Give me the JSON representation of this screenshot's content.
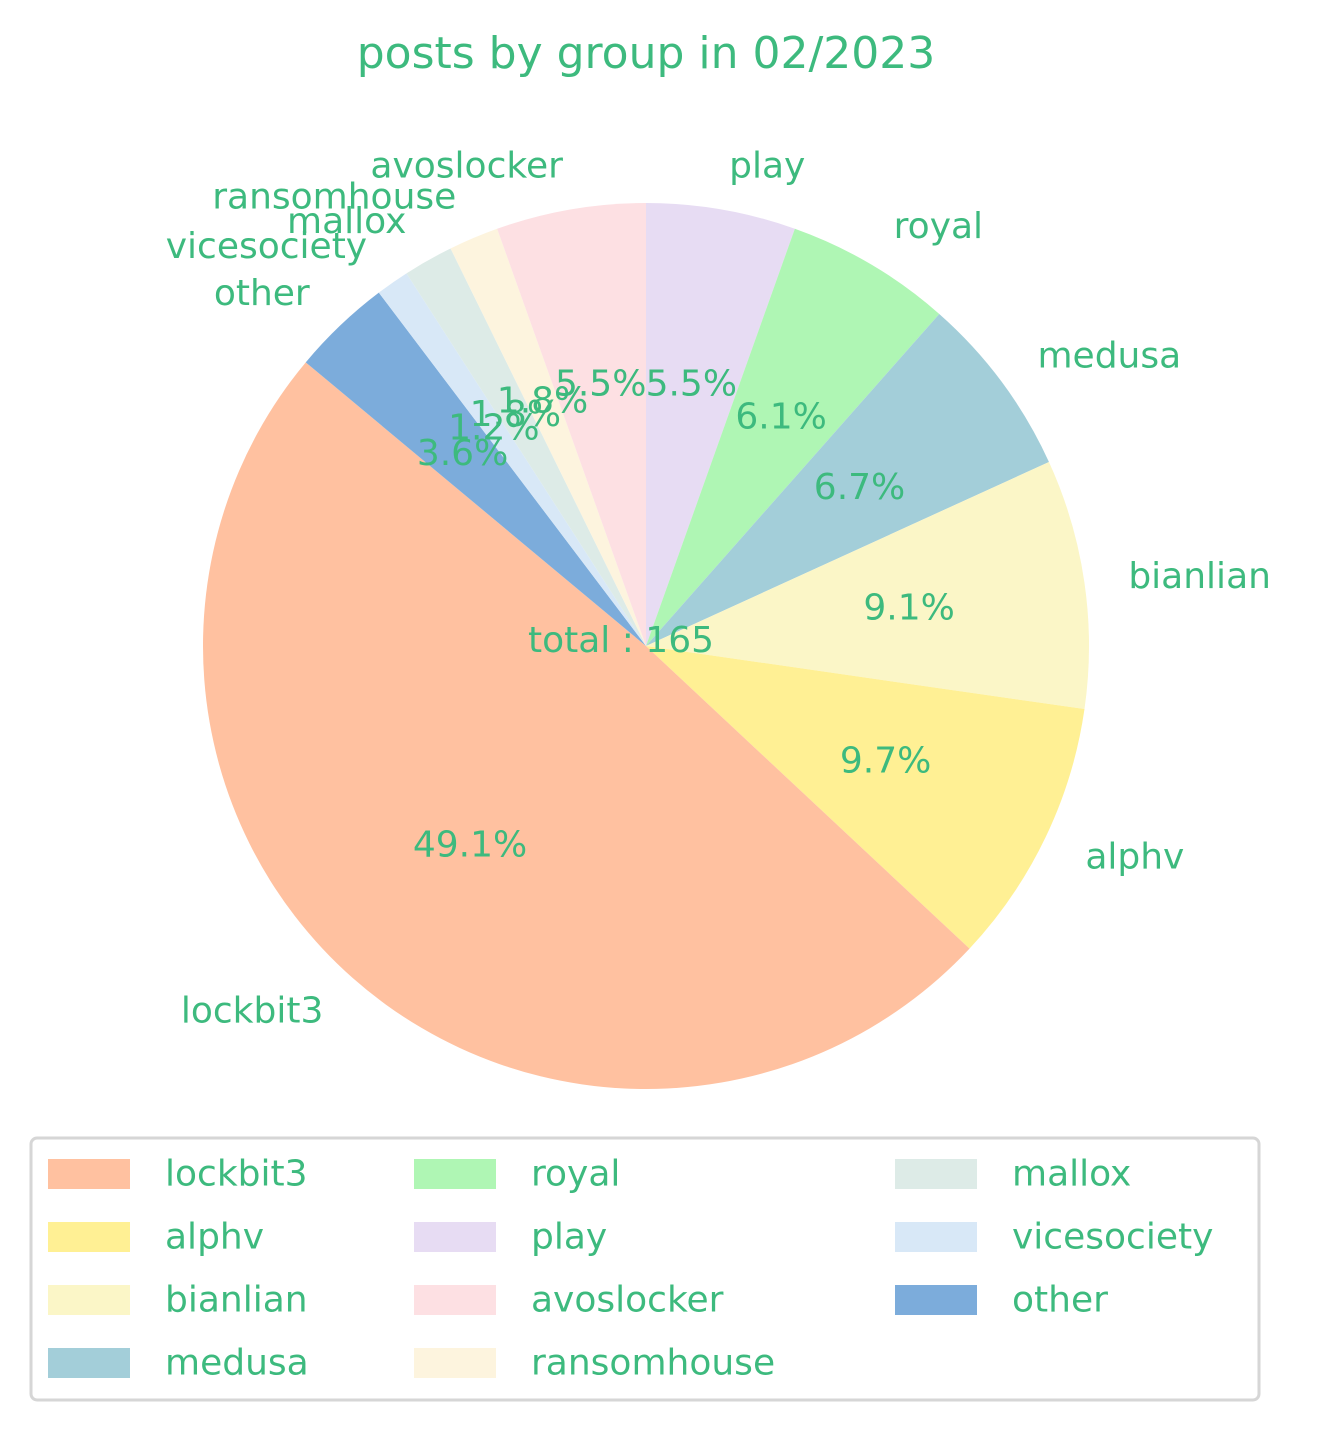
{
  "chart_data": {
    "type": "pie",
    "title": "posts by group in 02/2023",
    "center_label": "total : 165",
    "text_color": "#3dba7e",
    "start_angle_deg": 90,
    "direction": "clockwise",
    "legend_position": "bottom",
    "slices": [
      {
        "label": "play",
        "value": 9,
        "percent": "5.5%",
        "color": "#e7dcf3"
      },
      {
        "label": "royal",
        "value": 10,
        "percent": "6.1%",
        "color": "#aff6b4"
      },
      {
        "label": "medusa",
        "value": 11,
        "percent": "6.7%",
        "color": "#a3ced9"
      },
      {
        "label": "bianlian",
        "value": 15,
        "percent": "9.1%",
        "color": "#fbf6c7"
      },
      {
        "label": "alphv",
        "value": 16,
        "percent": "9.7%",
        "color": "#fff094"
      },
      {
        "label": "lockbit3",
        "value": 81,
        "percent": "49.1%",
        "color": "#ffc1a0"
      },
      {
        "label": "other",
        "value": 6,
        "percent": "3.6%",
        "color": "#7cacdb"
      },
      {
        "label": "vicesociety",
        "value": 2,
        "percent": "1.2%",
        "color": "#d8e8f7"
      },
      {
        "label": "mallox",
        "value": 3,
        "percent": "1.8%",
        "color": "#ddebe7"
      },
      {
        "label": "ransomhouse",
        "value": 3,
        "percent": "1.8%",
        "color": "#fdf4de"
      },
      {
        "label": "avoslocker",
        "value": 9,
        "percent": "5.5%",
        "color": "#fde0e3"
      }
    ],
    "legend_order": [
      "lockbit3",
      "alphv",
      "bianlian",
      "medusa",
      "royal",
      "play",
      "avoslocker",
      "ransomhouse",
      "mallox",
      "vicesociety",
      "other"
    ]
  }
}
